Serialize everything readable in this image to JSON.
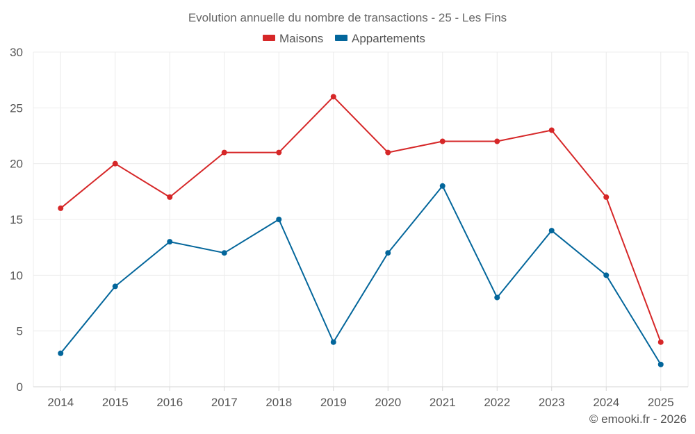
{
  "chart_data": {
    "type": "line",
    "title": "Evolution annuelle du nombre de transactions - 25 - Les Fins",
    "categories": [
      "2014",
      "2015",
      "2016",
      "2017",
      "2018",
      "2019",
      "2020",
      "2021",
      "2022",
      "2023",
      "2024",
      "2025"
    ],
    "series": [
      {
        "name": "Maisons",
        "color": "#d62728",
        "values": [
          16,
          20,
          17,
          21,
          21,
          26,
          21,
          22,
          22,
          23,
          17,
          4
        ]
      },
      {
        "name": "Appartements",
        "color": "#03669b",
        "values": [
          3,
          9,
          13,
          12,
          15,
          4,
          12,
          18,
          8,
          14,
          10,
          2
        ]
      }
    ],
    "ylim": [
      0,
      30
    ],
    "yticks": [
      "0",
      "5",
      "10",
      "15",
      "20",
      "25",
      "30"
    ],
    "xlabel": "",
    "ylabel": "",
    "grid": true,
    "legend_position": "top-center"
  },
  "credit": "© emooki.fr - 2026"
}
